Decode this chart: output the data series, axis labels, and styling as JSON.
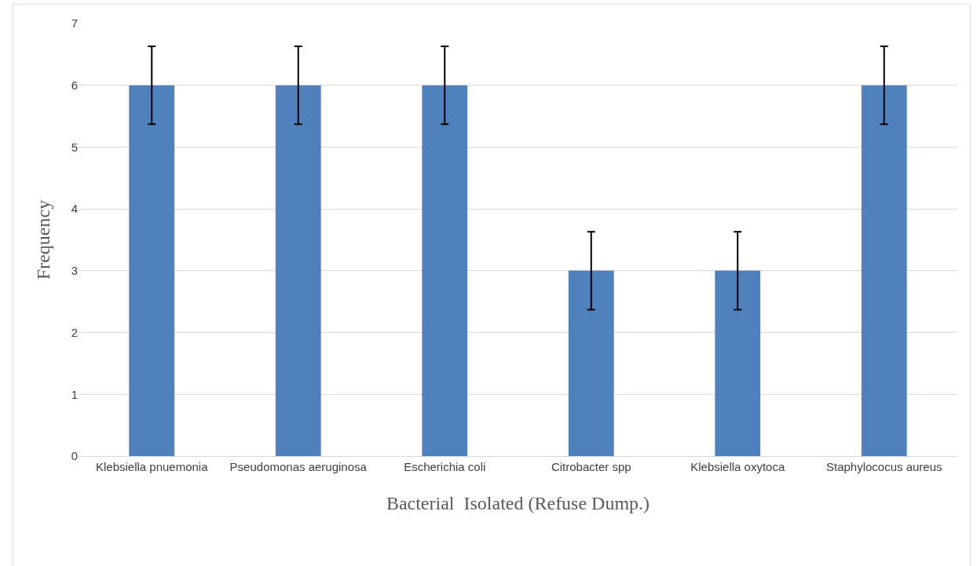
{
  "chart_data": {
    "type": "bar",
    "xlabel": "Bacterial  Isolated (Refuse Dump.)",
    "ylabel": "Frequency",
    "categories": [
      "Klebsiella pnuemonia",
      "Pseudomonas aeruginosa",
      "Escherichia coli",
      "Citrobacter spp",
      "Klebsiella oxytoca",
      "Staphylococus aureus"
    ],
    "values": [
      6,
      6,
      6,
      3,
      3,
      6
    ],
    "errors": [
      0.63,
      0.63,
      0.63,
      0.63,
      0.63,
      0.63
    ],
    "color": "#4f81bd",
    "ylim": [
      0,
      7
    ],
    "yticks": [
      0,
      1,
      2,
      3,
      4,
      5,
      6,
      7
    ],
    "grid": "y",
    "legend": false
  }
}
